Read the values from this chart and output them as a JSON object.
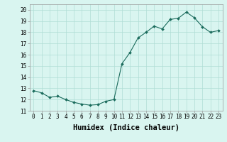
{
  "x": [
    0,
    1,
    2,
    3,
    4,
    5,
    6,
    7,
    8,
    9,
    10,
    11,
    12,
    13,
    14,
    15,
    16,
    17,
    18,
    19,
    20,
    21,
    22,
    23
  ],
  "y": [
    12.8,
    12.6,
    12.2,
    12.3,
    12.0,
    11.75,
    11.6,
    11.5,
    11.55,
    11.85,
    12.0,
    15.2,
    16.2,
    17.5,
    18.0,
    18.55,
    18.3,
    19.15,
    19.25,
    19.8,
    19.3,
    18.5,
    18.0,
    18.15
  ],
  "line_color": "#1a6b5c",
  "marker_color": "#1a6b5c",
  "bg_color": "#d9f5f0",
  "grid_color": "#b0ddd5",
  "xlabel": "Humidex (Indice chaleur)",
  "ylim": [
    11,
    20.5
  ],
  "xlim": [
    -0.5,
    23.5
  ],
  "yticks": [
    11,
    12,
    13,
    14,
    15,
    16,
    17,
    18,
    19,
    20
  ],
  "xticks": [
    0,
    1,
    2,
    3,
    4,
    5,
    6,
    7,
    8,
    9,
    10,
    11,
    12,
    13,
    14,
    15,
    16,
    17,
    18,
    19,
    20,
    21,
    22,
    23
  ],
  "tick_fontsize": 5.5,
  "xlabel_fontsize": 7.5,
  "marker_size": 2,
  "line_width": 0.8
}
